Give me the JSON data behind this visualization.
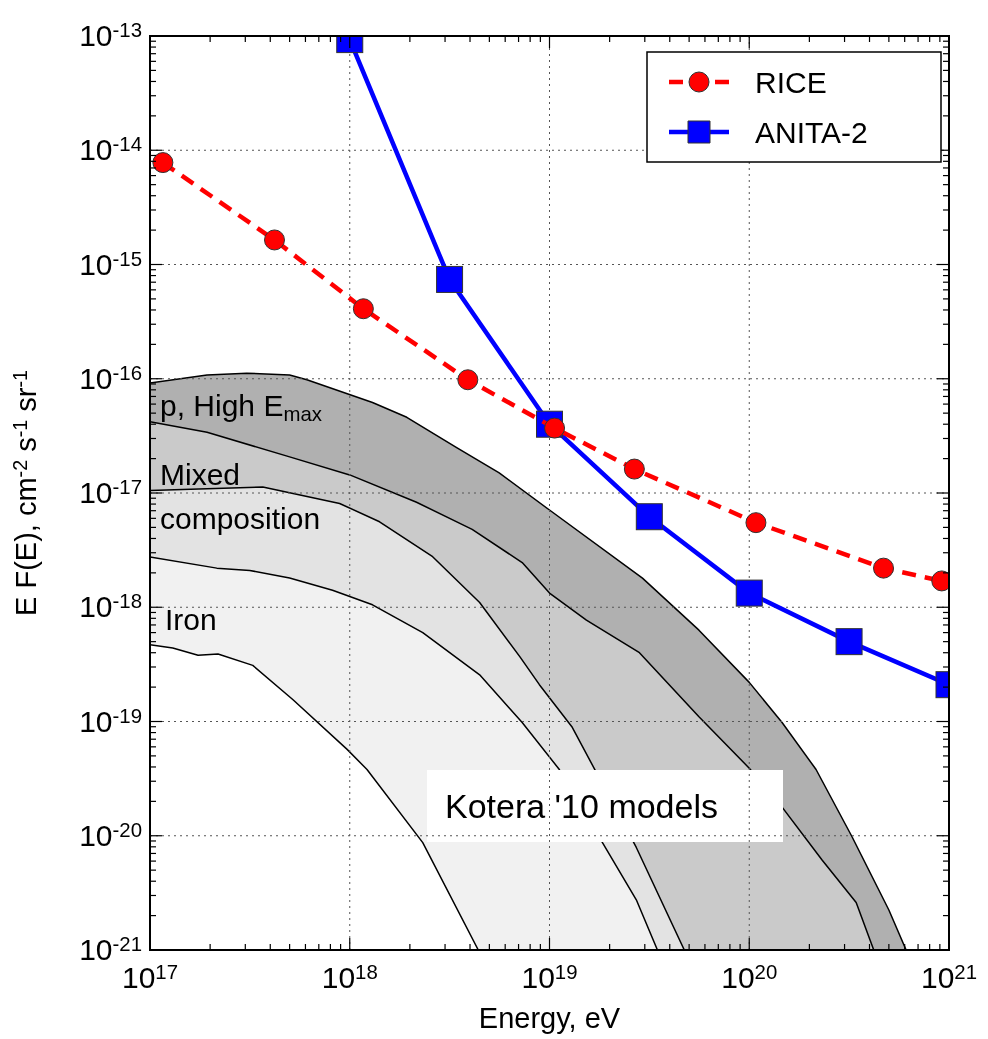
{
  "chart_data": {
    "type": "line",
    "log": "xy",
    "xlabel": "Energy, eV",
    "ylabel": "E F(E), cm$^{-2}$ s$^{-1}$ sr$^{-1}$",
    "xlim": [
      1e+17,
      1e+21
    ],
    "ylim": [
      1e-21,
      1e-13
    ],
    "xticks": [
      {
        "value": 1e+17,
        "label": "10$^{17}$"
      },
      {
        "value": 1e+18,
        "label": "10$^{18}$"
      },
      {
        "value": 1e+19,
        "label": "10$^{19}$"
      },
      {
        "value": 1e+20,
        "label": "10$^{20}$"
      },
      {
        "value": 1e+21,
        "label": "10$^{21}$"
      },
      {
        "value": 2e+17,
        "label": null
      },
      {
        "value": 3e+17,
        "label": null
      },
      {
        "value": 4e+17,
        "label": null
      },
      {
        "value": 5e+17,
        "label": null
      },
      {
        "value": 6e+17,
        "label": null
      },
      {
        "value": 7e+17,
        "label": null
      },
      {
        "value": 8e+17,
        "label": null
      },
      {
        "value": 9e+17,
        "label": null
      },
      {
        "value": 2e+18,
        "label": null
      },
      {
        "value": 3e+18,
        "label": null
      },
      {
        "value": 4e+18,
        "label": null
      },
      {
        "value": 5e+18,
        "label": null
      },
      {
        "value": 6e+18,
        "label": null
      },
      {
        "value": 7e+18,
        "label": null
      },
      {
        "value": 8e+18,
        "label": null
      },
      {
        "value": 9e+18,
        "label": null
      },
      {
        "value": 2e+19,
        "label": null
      },
      {
        "value": 3e+19,
        "label": null
      },
      {
        "value": 4e+19,
        "label": null
      },
      {
        "value": 5e+19,
        "label": null
      },
      {
        "value": 6e+19,
        "label": null
      },
      {
        "value": 7e+19,
        "label": null
      },
      {
        "value": 8e+19,
        "label": null
      },
      {
        "value": 9e+19,
        "label": null
      },
      {
        "value": 2e+20,
        "label": null
      },
      {
        "value": 3e+20,
        "label": null
      },
      {
        "value": 4e+20,
        "label": null
      },
      {
        "value": 5e+20,
        "label": null
      },
      {
        "value": 6e+20,
        "label": null
      },
      {
        "value": 7e+20,
        "label": null
      },
      {
        "value": 8e+20,
        "label": null
      },
      {
        "value": 9e+20,
        "label": null
      }
    ],
    "yticks": [
      {
        "value": 1e-21,
        "label": "10$^{-21}$"
      },
      {
        "value": 1e-20,
        "label": "10$^{-20}$"
      },
      {
        "value": 1e-19,
        "label": "10$^{-19}$"
      },
      {
        "value": 1e-18,
        "label": "10$^{-18}$"
      },
      {
        "value": 1e-17,
        "label": "10$^{-17}$"
      },
      {
        "value": 1e-16,
        "label": "10$^{-16}$"
      },
      {
        "value": 1e-15,
        "label": "10$^{-15}$"
      },
      {
        "value": 1e-14,
        "label": "10$^{-14}$"
      },
      {
        "value": 1e-13,
        "label": "10$^{-13}$"
      },
      {
        "value": 2e-21,
        "label": null
      },
      {
        "value": 3e-21,
        "label": null
      },
      {
        "value": 4e-21,
        "label": null
      },
      {
        "value": 5e-21,
        "label": null
      },
      {
        "value": 6e-21,
        "label": null
      },
      {
        "value": 7e-21,
        "label": null
      },
      {
        "value": 8e-21,
        "label": null
      },
      {
        "value": 9e-21,
        "label": null
      },
      {
        "value": 2e-20,
        "label": null
      },
      {
        "value": 3e-20,
        "label": null
      },
      {
        "value": 4e-20,
        "label": null
      },
      {
        "value": 5e-20,
        "label": null
      },
      {
        "value": 6e-20,
        "label": null
      },
      {
        "value": 7e-20,
        "label": null
      },
      {
        "value": 8e-20,
        "label": null
      },
      {
        "value": 9e-20,
        "label": null
      },
      {
        "value": 2e-19,
        "label": null
      },
      {
        "value": 3e-19,
        "label": null
      },
      {
        "value": 4e-19,
        "label": null
      },
      {
        "value": 5e-19,
        "label": null
      },
      {
        "value": 6e-19,
        "label": null
      },
      {
        "value": 7e-19,
        "label": null
      },
      {
        "value": 8e-19,
        "label": null
      },
      {
        "value": 9e-19,
        "label": null
      },
      {
        "value": 2e-18,
        "label": null
      },
      {
        "value": 3e-18,
        "label": null
      },
      {
        "value": 4e-18,
        "label": null
      },
      {
        "value": 5e-18,
        "label": null
      },
      {
        "value": 6e-18,
        "label": null
      },
      {
        "value": 7e-18,
        "label": null
      },
      {
        "value": 8e-18,
        "label": null
      },
      {
        "value": 9e-18,
        "label": null
      },
      {
        "value": 2e-17,
        "label": null
      },
      {
        "value": 3e-17,
        "label": null
      },
      {
        "value": 4e-17,
        "label": null
      },
      {
        "value": 5e-17,
        "label": null
      },
      {
        "value": 6e-17,
        "label": null
      },
      {
        "value": 7e-17,
        "label": null
      },
      {
        "value": 8e-17,
        "label": null
      },
      {
        "value": 9e-17,
        "label": null
      },
      {
        "value": 2e-16,
        "label": null
      },
      {
        "value": 3e-16,
        "label": null
      },
      {
        "value": 4e-16,
        "label": null
      },
      {
        "value": 5e-16,
        "label": null
      },
      {
        "value": 6e-16,
        "label": null
      },
      {
        "value": 7e-16,
        "label": null
      },
      {
        "value": 8e-16,
        "label": null
      },
      {
        "value": 9e-16,
        "label": null
      },
      {
        "value": 2e-15,
        "label": null
      },
      {
        "value": 3e-15,
        "label": null
      },
      {
        "value": 4e-15,
        "label": null
      },
      {
        "value": 5e-15,
        "label": null
      },
      {
        "value": 6e-15,
        "label": null
      },
      {
        "value": 7e-15,
        "label": null
      },
      {
        "value": 8e-15,
        "label": null
      },
      {
        "value": 9e-15,
        "label": null
      },
      {
        "value": 2e-14,
        "label": null
      },
      {
        "value": 3e-14,
        "label": null
      },
      {
        "value": 4e-14,
        "label": null
      },
      {
        "value": 5e-14,
        "label": null
      },
      {
        "value": 6e-14,
        "label": null
      },
      {
        "value": 7e-14,
        "label": null
      },
      {
        "value": 8e-14,
        "label": null
      },
      {
        "value": 9e-14,
        "label": null
      }
    ],
    "grid": true,
    "legend": "top right",
    "annotations": [
      "p, High E$_{max}$",
      "Mixed composition",
      "Iron",
      "Kotera '10 models"
    ],
    "series": [
      {
        "type": "area",
        "color": "#b0b0b0",
        "x": [
          1e+17,
          1.93e+17,
          3.05e+17,
          5e+17,
          6.1e+17,
          1.3e+18,
          1.93e+18,
          3.43e+18,
          5.6e+18,
          1e+19,
          2.92e+19,
          5.6e+19,
          1e+20,
          1.46e+20,
          2.16e+20,
          3.27e+20,
          5e+20,
          6.1e+20
        ],
        "values": [
          9.2e-17,
          1.08e-16,
          1.12e-16,
          1.08e-16,
          9.8e-17,
          6.2e-17,
          4.6e-17,
          2.5e-17,
          1.5e-17,
          7.1e-18,
          1.8e-18,
          6.3e-19,
          2.2e-19,
          9.8e-20,
          3.8e-20,
          9.8e-21,
          2.24e-21,
          1e-21
        ]
      },
      {
        "type": "area",
        "color": "#cacaca",
        "x": [
          1e+17,
          1.93e+17,
          5e+17,
          1e+18,
          2.16e+18,
          4.1e+18,
          7.3e+18,
          1e+19,
          1.53e+19,
          2.82e+19,
          5.6e+19,
          1e+20,
          1.46e+20,
          2.32e+20,
          3.43e+20,
          4.2e+20
        ],
        "values": [
          4.2e-17,
          3.4e-17,
          2.07e-17,
          1.44e-17,
          8.3e-18,
          4.8e-18,
          2.46e-18,
          1.33e-18,
          7.7e-19,
          4e-19,
          1.1e-19,
          3.9e-20,
          1.78e-20,
          6.1e-21,
          2.6e-21,
          1e-21
        ]
      },
      {
        "type": "area",
        "color": "#e3e3e3",
        "x": [
          1e+17,
          3.67e+17,
          8.9e+17,
          1.41e+18,
          2.6e+18,
          4.47e+18,
          7.1e+18,
          8.9e+18,
          1.3e+19,
          1.84e+19,
          2.72e+19,
          4.73e+19
        ],
        "values": [
          1.05e-17,
          1.13e-17,
          8.1e-18,
          5.6e-18,
          2.77e-18,
          1.1e-18,
          3.7e-19,
          2.1e-19,
          8.9e-20,
          null,
          7.9e-21,
          1e-21
        ]
      },
      {
        "type": "area",
        "color": "#f1f1f1",
        "x": [
          1e+17,
          2.16e+17,
          3.16e+17,
          5e+17,
          8.2e+17,
          1.3e+18,
          2.32e+18,
          4.47e+18,
          7.3e+18,
          1.12e+19,
          1.84e+19,
          2.72e+19,
          3.47e+19
        ],
        "values": [
          2.75e-18,
          2.2e-18,
          2.1e-18,
          1.8e-18,
          1.41e-18,
          1.05e-18,
          6e-19,
          2.56e-19,
          9.8e-20,
          3.8e-20,
          null,
          2.75e-21,
          1e-21
        ]
      },
      {
        "type": "area",
        "color": "#ffffff",
        "x": [
          1e+17,
          1.3e+17,
          1.74e+17,
          2.19e+17,
          3.27e+17,
          5.2e+17,
          9.7e+17,
          1.22e+18,
          2.32e+18,
          4.4e+18
        ],
        "values": [
          4.7e-19,
          4.4e-19,
          3.8e-19,
          3.9e-19,
          3.1e-19,
          1.55e-19,
          5.7e-20,
          3.8e-20,
          8.7e-21,
          1e-21
        ]
      },
      {
        "name": "RICE",
        "color": "#ff0000",
        "marker": "circle",
        "line_style": "dashed",
        "x": [
          1.16e+17,
          4.2e+17,
          1.17e+18,
          3.9e+18,
          1.06e+19,
          2.66e+19,
          1.08e+20,
          4.7e+20,
          9.2e+20
        ],
        "values": [
          7.8e-15,
          1.64e-15,
          4.1e-16,
          9.8e-17,
          3.7e-17,
          1.62e-17,
          5.5e-18,
          2.2e-18,
          1.7e-18
        ]
      },
      {
        "name": "ANITA-2",
        "color": "#0000ff",
        "marker": "square",
        "line_style": "solid",
        "x": [
          1e+18,
          3.16e+18,
          1e+19,
          3.16e+19,
          1e+20,
          3.16e+20,
          1e+21
        ],
        "values": [
          9.3e-14,
          7.4e-16,
          4e-17,
          6.2e-18,
          1.33e-18,
          5e-19,
          2.1e-19
        ]
      }
    ]
  }
}
